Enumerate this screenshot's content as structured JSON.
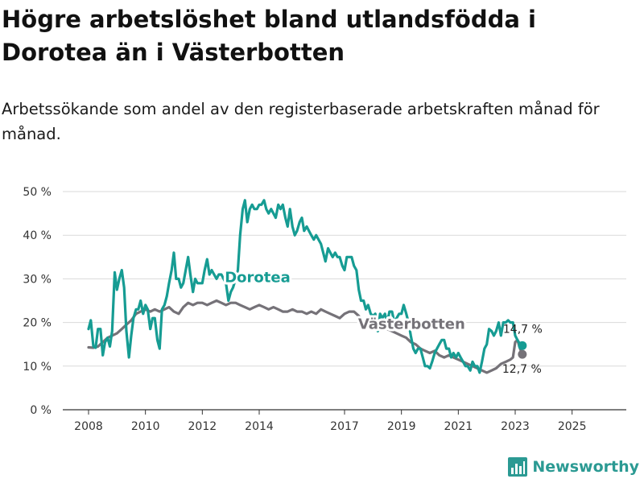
{
  "header": {
    "title": "Högre arbetslöshet bland utlandsfödda i Dorotea än i Västerbotten",
    "subtitle": "Arbetssökande som andel av den registerbaserade arbetskraften månad för månad."
  },
  "brand": {
    "name": "Newsworthy",
    "icon": "bar-chart-logo-icon"
  },
  "colors": {
    "dorotea": "#169c93",
    "vasterbotten": "#757278",
    "grid": "#d9d9d9",
    "axis": "#333333"
  },
  "chart_data": {
    "type": "line",
    "title": "Högre arbetslöshet bland utlandsfödda i Dorotea än i Västerbotten",
    "xlabel": "",
    "ylabel": "",
    "xlim": [
      2008.0,
      2026.0
    ],
    "ylim": [
      0,
      50
    ],
    "y_ticks": [
      0,
      10,
      20,
      30,
      40,
      50
    ],
    "y_tick_labels": [
      "0 %",
      "10 %",
      "20 %",
      "30 %",
      "40 %",
      "50 %"
    ],
    "x_ticks": [
      2008,
      2010,
      2012,
      2014,
      2017,
      2019,
      2021,
      2023,
      2025
    ],
    "x_tick_labels": [
      "2008",
      "2010",
      "2012",
      "2014",
      "2017",
      "2019",
      "2021",
      "2023",
      "2025"
    ],
    "grid": true,
    "series": [
      {
        "name": "Dorotea",
        "label": "Dorotea",
        "end_label": "14,7 %",
        "end_value": 14.7,
        "points": [
          [
            2008.0,
            18.5
          ],
          [
            2008.08,
            20.5
          ],
          [
            2008.17,
            14.5
          ],
          [
            2008.25,
            14.2
          ],
          [
            2008.33,
            18.5
          ],
          [
            2008.42,
            18.5
          ],
          [
            2008.5,
            12.5
          ],
          [
            2008.58,
            15.5
          ],
          [
            2008.67,
            16.5
          ],
          [
            2008.75,
            14.5
          ],
          [
            2008.83,
            18
          ],
          [
            2008.92,
            31.5
          ],
          [
            2009.0,
            27.5
          ],
          [
            2009.08,
            30
          ],
          [
            2009.17,
            32
          ],
          [
            2009.25,
            28
          ],
          [
            2009.33,
            18
          ],
          [
            2009.42,
            12
          ],
          [
            2009.5,
            17
          ],
          [
            2009.58,
            21
          ],
          [
            2009.67,
            23
          ],
          [
            2009.75,
            23
          ],
          [
            2009.83,
            25
          ],
          [
            2009.92,
            22
          ],
          [
            2010.0,
            24
          ],
          [
            2010.08,
            23
          ],
          [
            2010.17,
            18.5
          ],
          [
            2010.25,
            21
          ],
          [
            2010.33,
            21
          ],
          [
            2010.42,
            16
          ],
          [
            2010.5,
            14
          ],
          [
            2010.58,
            23
          ],
          [
            2010.67,
            24
          ],
          [
            2010.75,
            26
          ],
          [
            2010.83,
            29
          ],
          [
            2010.92,
            32
          ],
          [
            2011.0,
            36
          ],
          [
            2011.08,
            30
          ],
          [
            2011.17,
            30
          ],
          [
            2011.25,
            28
          ],
          [
            2011.33,
            29
          ],
          [
            2011.5,
            35
          ],
          [
            2011.58,
            31
          ],
          [
            2011.67,
            27
          ],
          [
            2011.75,
            30
          ],
          [
            2011.83,
            29
          ],
          [
            2012.0,
            29
          ],
          [
            2012.08,
            32
          ],
          [
            2012.17,
            34.5
          ],
          [
            2012.25,
            31
          ],
          [
            2012.33,
            32
          ],
          [
            2012.5,
            30
          ],
          [
            2012.58,
            31
          ],
          [
            2012.67,
            31
          ],
          [
            2012.75,
            30
          ],
          [
            2012.83,
            29
          ],
          [
            2012.92,
            25
          ],
          [
            2013.0,
            27
          ],
          [
            2013.08,
            28
          ],
          [
            2013.17,
            30
          ],
          [
            2013.25,
            32
          ],
          [
            2013.33,
            40
          ],
          [
            2013.42,
            46
          ],
          [
            2013.5,
            48
          ],
          [
            2013.58,
            43
          ],
          [
            2013.67,
            46
          ],
          [
            2013.75,
            47
          ],
          [
            2013.83,
            46
          ],
          [
            2013.92,
            46
          ],
          [
            2014.0,
            47
          ],
          [
            2014.08,
            47
          ],
          [
            2014.17,
            48
          ],
          [
            2014.25,
            46
          ],
          [
            2014.33,
            45
          ],
          [
            2014.42,
            46
          ],
          [
            2014.5,
            45
          ],
          [
            2014.58,
            44
          ],
          [
            2014.67,
            47
          ],
          [
            2014.75,
            46
          ],
          [
            2014.83,
            47
          ],
          [
            2014.92,
            44
          ],
          [
            2015.0,
            42
          ],
          [
            2015.08,
            46
          ],
          [
            2015.17,
            42
          ],
          [
            2015.25,
            40
          ],
          [
            2015.33,
            41
          ],
          [
            2015.42,
            43
          ],
          [
            2015.5,
            44
          ],
          [
            2015.58,
            41
          ],
          [
            2015.67,
            42
          ],
          [
            2015.75,
            41
          ],
          [
            2015.83,
            40
          ],
          [
            2015.92,
            39
          ],
          [
            2016.0,
            40
          ],
          [
            2016.17,
            38
          ],
          [
            2016.33,
            34
          ],
          [
            2016.42,
            37
          ],
          [
            2016.5,
            36
          ],
          [
            2016.58,
            35
          ],
          [
            2016.67,
            36
          ],
          [
            2016.75,
            35
          ],
          [
            2016.83,
            35
          ],
          [
            2016.92,
            33
          ],
          [
            2017.0,
            32
          ],
          [
            2017.08,
            35
          ],
          [
            2017.17,
            35
          ],
          [
            2017.25,
            35
          ],
          [
            2017.33,
            33
          ],
          [
            2017.42,
            32
          ],
          [
            2017.5,
            27.5
          ],
          [
            2017.58,
            25
          ],
          [
            2017.67,
            25
          ],
          [
            2017.75,
            23
          ],
          [
            2017.83,
            24
          ],
          [
            2017.92,
            22
          ],
          [
            2018.0,
            21.5
          ],
          [
            2018.08,
            22
          ],
          [
            2018.17,
            18
          ],
          [
            2018.25,
            22
          ],
          [
            2018.33,
            21
          ],
          [
            2018.42,
            22
          ],
          [
            2018.5,
            20
          ],
          [
            2018.58,
            22.5
          ],
          [
            2018.67,
            22.5
          ],
          [
            2018.75,
            20
          ],
          [
            2018.83,
            21
          ],
          [
            2018.92,
            22
          ],
          [
            2019.0,
            22
          ],
          [
            2019.08,
            24
          ],
          [
            2019.17,
            22
          ],
          [
            2019.25,
            20
          ],
          [
            2019.33,
            17
          ],
          [
            2019.42,
            14
          ],
          [
            2019.5,
            13
          ],
          [
            2019.58,
            14
          ],
          [
            2019.67,
            14
          ],
          [
            2019.75,
            12
          ],
          [
            2019.83,
            10
          ],
          [
            2019.92,
            10
          ],
          [
            2020.0,
            9.5
          ],
          [
            2020.08,
            11
          ],
          [
            2020.17,
            13
          ],
          [
            2020.25,
            14
          ],
          [
            2020.33,
            15
          ],
          [
            2020.42,
            16
          ],
          [
            2020.5,
            16
          ],
          [
            2020.58,
            14
          ],
          [
            2020.67,
            14
          ],
          [
            2020.75,
            12
          ],
          [
            2020.83,
            13
          ],
          [
            2020.92,
            12
          ],
          [
            2021.0,
            13
          ],
          [
            2021.08,
            12
          ],
          [
            2021.17,
            11
          ],
          [
            2021.25,
            10
          ],
          [
            2021.33,
            10
          ],
          [
            2021.42,
            9
          ],
          [
            2021.5,
            11
          ],
          [
            2021.58,
            10
          ],
          [
            2021.67,
            10
          ],
          [
            2021.75,
            8.5
          ],
          [
            2021.83,
            11
          ],
          [
            2021.92,
            14
          ],
          [
            2022.0,
            15
          ],
          [
            2022.08,
            18.5
          ],
          [
            2022.17,
            18
          ],
          [
            2022.25,
            17
          ],
          [
            2022.33,
            18
          ],
          [
            2022.42,
            20
          ],
          [
            2022.5,
            17
          ],
          [
            2022.58,
            20
          ],
          [
            2022.67,
            20
          ],
          [
            2022.75,
            20.5
          ],
          [
            2022.83,
            20
          ],
          [
            2022.92,
            20
          ],
          [
            2023.0,
            17
          ],
          [
            2023.08,
            16
          ],
          [
            2023.17,
            15
          ],
          [
            2023.25,
            14.7
          ]
        ]
      },
      {
        "name": "Västerbotten",
        "label": "Västerbotten",
        "end_label": "12,7 %",
        "end_value": 12.7,
        "points": [
          [
            2008.0,
            14.3
          ],
          [
            2008.17,
            14.2
          ],
          [
            2008.33,
            14.5
          ],
          [
            2008.5,
            15.5
          ],
          [
            2008.67,
            16.5
          ],
          [
            2008.83,
            17
          ],
          [
            2009.0,
            17.5
          ],
          [
            2009.17,
            18.5
          ],
          [
            2009.33,
            19.5
          ],
          [
            2009.5,
            20.5
          ],
          [
            2009.67,
            22
          ],
          [
            2009.83,
            22.5
          ],
          [
            2010.0,
            23
          ],
          [
            2010.17,
            22.5
          ],
          [
            2010.33,
            23
          ],
          [
            2010.5,
            22.5
          ],
          [
            2010.67,
            23
          ],
          [
            2010.83,
            23.5
          ],
          [
            2011.0,
            22.5
          ],
          [
            2011.17,
            22
          ],
          [
            2011.33,
            23.5
          ],
          [
            2011.5,
            24.5
          ],
          [
            2011.67,
            24
          ],
          [
            2011.83,
            24.5
          ],
          [
            2012.0,
            24.5
          ],
          [
            2012.17,
            24
          ],
          [
            2012.33,
            24.5
          ],
          [
            2012.5,
            25
          ],
          [
            2012.67,
            24.5
          ],
          [
            2012.83,
            24
          ],
          [
            2013.0,
            24.5
          ],
          [
            2013.17,
            24.5
          ],
          [
            2013.33,
            24
          ],
          [
            2013.5,
            23.5
          ],
          [
            2013.67,
            23
          ],
          [
            2013.83,
            23.5
          ],
          [
            2014.0,
            24
          ],
          [
            2014.17,
            23.5
          ],
          [
            2014.33,
            23
          ],
          [
            2014.5,
            23.5
          ],
          [
            2014.67,
            23
          ],
          [
            2014.83,
            22.5
          ],
          [
            2015.0,
            22.5
          ],
          [
            2015.17,
            23
          ],
          [
            2015.33,
            22.5
          ],
          [
            2015.5,
            22.5
          ],
          [
            2015.67,
            22
          ],
          [
            2015.83,
            22.5
          ],
          [
            2016.0,
            22
          ],
          [
            2016.17,
            23
          ],
          [
            2016.33,
            22.5
          ],
          [
            2016.5,
            22
          ],
          [
            2016.67,
            21.5
          ],
          [
            2016.83,
            21
          ],
          [
            2017.0,
            22
          ],
          [
            2017.17,
            22.5
          ],
          [
            2017.33,
            22.5
          ],
          [
            2017.5,
            21.5
          ],
          [
            2017.67,
            20
          ],
          [
            2017.83,
            20
          ],
          [
            2018.0,
            20.5
          ],
          [
            2018.17,
            19.5
          ],
          [
            2018.33,
            20
          ],
          [
            2018.5,
            18.5
          ],
          [
            2018.67,
            18
          ],
          [
            2018.83,
            17.5
          ],
          [
            2019.0,
            17
          ],
          [
            2019.17,
            16.5
          ],
          [
            2019.33,
            15.5
          ],
          [
            2019.5,
            15
          ],
          [
            2019.67,
            14
          ],
          [
            2019.83,
            13.5
          ],
          [
            2020.0,
            13
          ],
          [
            2020.17,
            13.5
          ],
          [
            2020.33,
            12.5
          ],
          [
            2020.5,
            12
          ],
          [
            2020.67,
            12.5
          ],
          [
            2020.83,
            12
          ],
          [
            2021.0,
            11.5
          ],
          [
            2021.17,
            11
          ],
          [
            2021.33,
            10.5
          ],
          [
            2021.5,
            10
          ],
          [
            2021.67,
            9.5
          ],
          [
            2021.83,
            9
          ],
          [
            2022.0,
            8.5
          ],
          [
            2022.17,
            9
          ],
          [
            2022.33,
            9.5
          ],
          [
            2022.5,
            10.5
          ],
          [
            2022.67,
            11
          ],
          [
            2022.83,
            11.5
          ],
          [
            2022.92,
            12
          ],
          [
            2023.0,
            15.5
          ],
          [
            2023.08,
            16
          ],
          [
            2023.17,
            14
          ],
          [
            2023.25,
            12.7
          ]
        ]
      }
    ]
  }
}
